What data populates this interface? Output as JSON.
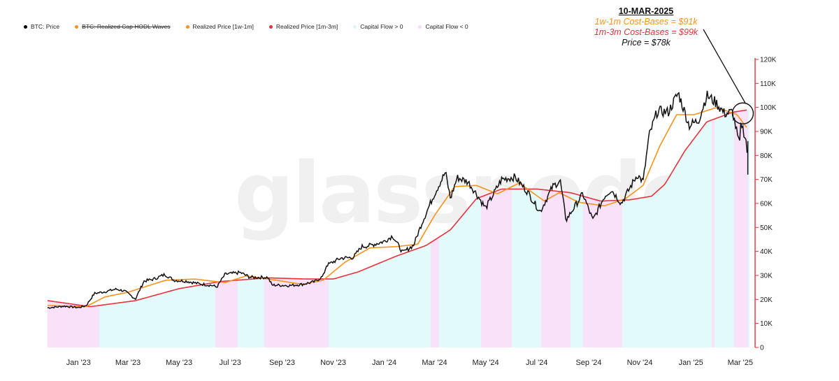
{
  "header_fragment": "",
  "legend": [
    {
      "label": "BTC: Price",
      "color": "#000000",
      "struck": false
    },
    {
      "label": "BTC: Realized Cap HODL Waves",
      "color": "#f7931a",
      "struck": true
    },
    {
      "label": "Realized Price [1w-1m]",
      "color": "#f7931a",
      "struck": false
    },
    {
      "label": "Realized Price [1m-3m]",
      "color": "#e8323c",
      "struck": false
    },
    {
      "label": "Capital Flow > 0",
      "color": "#d9f6f6",
      "struck": false
    },
    {
      "label": "Capital Flow < 0",
      "color": "#f6dcf6",
      "struck": false
    }
  ],
  "annotation": {
    "title": "10-MAR-2025",
    "line1": "1w-1m Cost-Bases = $91k",
    "line2": "1m-3m Cost-Bases = $99k",
    "line3": "Price = $78k"
  },
  "watermark": "glassnode",
  "colors": {
    "price": "#111111",
    "rp_short": "#f7931a",
    "rp_long": "#e8323c",
    "flow_pos": "#e3fafa",
    "flow_neg": "#f9e2f9",
    "axis": "#e8323c"
  },
  "chart_data": {
    "type": "line",
    "x_ticks": [
      "Jan '23",
      "Mar '23",
      "May '23",
      "Jul '23",
      "Sep '23",
      "Nov '23",
      "Jan '24",
      "Mar '24",
      "May '24",
      "Jul '24",
      "Sep '24",
      "Nov '24",
      "Jan '25",
      "Mar '25"
    ],
    "y_ticks": [
      "0",
      "10K",
      "20K",
      "30K",
      "40K",
      "50K",
      "60K",
      "70K",
      "80K",
      "90K",
      "100K",
      "110K",
      "120K"
    ],
    "ylim": [
      0,
      120000
    ],
    "x_range": [
      "2022-11-25",
      "2025-03-12"
    ],
    "series": [
      {
        "name": "BTC: Price",
        "points": [
          [
            "2022-11-25",
            16500
          ],
          [
            "2022-12-15",
            17200
          ],
          [
            "2023-01-01",
            16600
          ],
          [
            "2023-01-10",
            17400
          ],
          [
            "2023-01-20",
            22500
          ],
          [
            "2023-02-01",
            23200
          ],
          [
            "2023-02-15",
            24300
          ],
          [
            "2023-02-25",
            23500
          ],
          [
            "2023-03-10",
            20200
          ],
          [
            "2023-03-20",
            27600
          ],
          [
            "2023-04-01",
            28500
          ],
          [
            "2023-04-14",
            30400
          ],
          [
            "2023-04-25",
            28000
          ],
          [
            "2023-05-10",
            27600
          ],
          [
            "2023-05-25",
            26500
          ],
          [
            "2023-06-10",
            25800
          ],
          [
            "2023-06-15",
            25100
          ],
          [
            "2023-06-25",
            30500
          ],
          [
            "2023-07-13",
            31200
          ],
          [
            "2023-07-25",
            29200
          ],
          [
            "2023-08-15",
            29200
          ],
          [
            "2023-08-20",
            26000
          ],
          [
            "2023-09-10",
            25800
          ],
          [
            "2023-09-25",
            26300
          ],
          [
            "2023-10-10",
            27400
          ],
          [
            "2023-10-20",
            29700
          ],
          [
            "2023-10-24",
            34200
          ],
          [
            "2023-11-10",
            37200
          ],
          [
            "2023-11-25",
            37500
          ],
          [
            "2023-12-05",
            42000
          ],
          [
            "2023-12-15",
            42500
          ],
          [
            "2024-01-01",
            44200
          ],
          [
            "2024-01-11",
            46500
          ],
          [
            "2024-01-23",
            39500
          ],
          [
            "2024-02-05",
            42600
          ],
          [
            "2024-02-15",
            51900
          ],
          [
            "2024-02-28",
            62500
          ],
          [
            "2024-03-05",
            66800
          ],
          [
            "2024-03-14",
            73000
          ],
          [
            "2024-03-20",
            62000
          ],
          [
            "2024-03-28",
            70800
          ],
          [
            "2024-04-10",
            69000
          ],
          [
            "2024-04-20",
            64000
          ],
          [
            "2024-05-01",
            58000
          ],
          [
            "2024-05-20",
            70000
          ],
          [
            "2024-06-05",
            71000
          ],
          [
            "2024-06-20",
            64800
          ],
          [
            "2024-07-05",
            56500
          ],
          [
            "2024-07-20",
            67000
          ],
          [
            "2024-07-29",
            69500
          ],
          [
            "2024-08-05",
            53000
          ],
          [
            "2024-08-25",
            64000
          ],
          [
            "2024-09-06",
            53000
          ],
          [
            "2024-09-20",
            63000
          ],
          [
            "2024-09-28",
            65800
          ],
          [
            "2024-10-10",
            60000
          ],
          [
            "2024-10-29",
            72000
          ],
          [
            "2024-11-05",
            69000
          ],
          [
            "2024-11-12",
            88000
          ],
          [
            "2024-11-22",
            98500
          ],
          [
            "2024-12-05",
            98000
          ],
          [
            "2024-12-17",
            106000
          ],
          [
            "2024-12-30",
            92500
          ],
          [
            "2025-01-10",
            94500
          ],
          [
            "2025-01-20",
            105000
          ],
          [
            "2025-01-31",
            102000
          ],
          [
            "2025-02-10",
            97500
          ],
          [
            "2025-02-20",
            98000
          ],
          [
            "2025-02-28",
            84000
          ],
          [
            "2025-03-02",
            94000
          ],
          [
            "2025-03-08",
            86000
          ],
          [
            "2025-03-10",
            78000
          ]
        ]
      },
      {
        "name": "Realized Price [1w-1m]",
        "points": [
          [
            "2022-11-25",
            17500
          ],
          [
            "2023-01-10",
            17000
          ],
          [
            "2023-02-01",
            21000
          ],
          [
            "2023-03-01",
            23000
          ],
          [
            "2023-04-15",
            28000
          ],
          [
            "2023-05-20",
            28500
          ],
          [
            "2023-06-25",
            27000
          ],
          [
            "2023-07-20",
            29800
          ],
          [
            "2023-08-25",
            28000
          ],
          [
            "2023-09-25",
            26300
          ],
          [
            "2023-10-20",
            28000
          ],
          [
            "2023-11-15",
            35500
          ],
          [
            "2023-12-15",
            41500
          ],
          [
            "2024-01-15",
            42000
          ],
          [
            "2024-02-10",
            43000
          ],
          [
            "2024-03-01",
            55000
          ],
          [
            "2024-03-25",
            67000
          ],
          [
            "2024-04-20",
            67500
          ],
          [
            "2024-05-15",
            64000
          ],
          [
            "2024-06-10",
            68500
          ],
          [
            "2024-07-10",
            61000
          ],
          [
            "2024-07-28",
            64500
          ],
          [
            "2024-08-20",
            60500
          ],
          [
            "2024-09-20",
            59000
          ],
          [
            "2024-10-15",
            62000
          ],
          [
            "2024-11-05",
            67500
          ],
          [
            "2024-11-25",
            84000
          ],
          [
            "2024-12-15",
            97000
          ],
          [
            "2025-01-05",
            97000
          ],
          [
            "2025-02-01",
            100000
          ],
          [
            "2025-02-25",
            97000
          ],
          [
            "2025-03-10",
            91000
          ]
        ]
      },
      {
        "name": "Realized Price [1m-3m]",
        "points": [
          [
            "2022-11-25",
            19500
          ],
          [
            "2023-01-15",
            17000
          ],
          [
            "2023-03-10",
            19500
          ],
          [
            "2023-05-01",
            24500
          ],
          [
            "2023-06-20",
            27500
          ],
          [
            "2023-08-15",
            29000
          ],
          [
            "2023-10-01",
            28500
          ],
          [
            "2023-11-01",
            28500
          ],
          [
            "2023-12-01",
            31500
          ],
          [
            "2024-01-15",
            38000
          ],
          [
            "2024-02-20",
            42500
          ],
          [
            "2024-03-20",
            49000
          ],
          [
            "2024-04-20",
            62000
          ],
          [
            "2024-05-20",
            66000
          ],
          [
            "2024-07-01",
            66000
          ],
          [
            "2024-08-10",
            64500
          ],
          [
            "2024-09-15",
            61000
          ],
          [
            "2024-10-20",
            61500
          ],
          [
            "2024-11-15",
            63000
          ],
          [
            "2024-12-01",
            68000
          ],
          [
            "2024-12-25",
            82000
          ],
          [
            "2025-01-20",
            94000
          ],
          [
            "2025-02-20",
            98000
          ],
          [
            "2025-03-10",
            99000
          ]
        ]
      }
    ],
    "capital_flow_negative_periods": [
      [
        "2022-11-25",
        "2023-01-25"
      ],
      [
        "2023-06-12",
        "2023-07-10"
      ],
      [
        "2023-08-10",
        "2023-10-25"
      ],
      [
        "2024-02-25",
        "2024-03-05"
      ],
      [
        "2024-04-25",
        "2024-06-01"
      ],
      [
        "2024-07-05",
        "2024-08-10"
      ],
      [
        "2024-08-25",
        "2024-10-10"
      ],
      [
        "2025-01-25",
        "2025-01-28"
      ],
      [
        "2025-02-20",
        "2025-03-10"
      ]
    ],
    "grid": false,
    "legend_position": "top-left"
  }
}
